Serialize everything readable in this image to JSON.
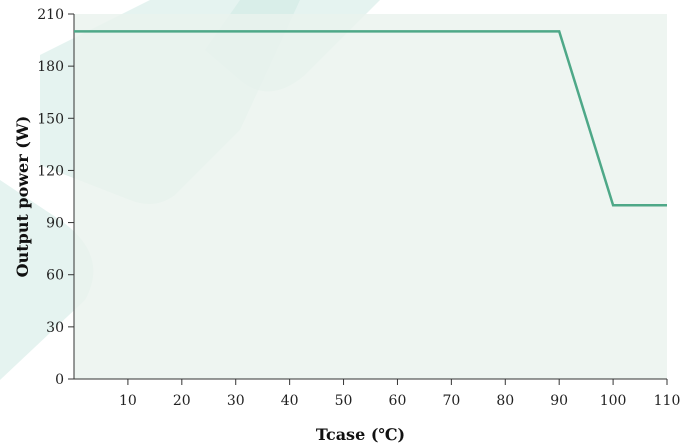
{
  "chart_data": {
    "type": "line",
    "title": "",
    "xlabel": "Tcase (℃)",
    "ylabel": "Output power (W)",
    "xlim": [
      0,
      110
    ],
    "ylim": [
      0,
      210
    ],
    "x_ticks": [
      10,
      20,
      30,
      40,
      50,
      60,
      70,
      80,
      90,
      100,
      110
    ],
    "y_ticks": [
      0,
      30,
      60,
      90,
      120,
      150,
      180,
      210
    ],
    "grid": false,
    "legend": "none",
    "series": [
      {
        "x": [
          0,
          90,
          100,
          110
        ],
        "y": [
          200,
          200,
          100,
          100
        ]
      }
    ],
    "colors": {
      "plot_background": "#eaf3ee",
      "line": "#4ea888",
      "watermark": "#cfe9e3",
      "axis": "#333333"
    }
  }
}
